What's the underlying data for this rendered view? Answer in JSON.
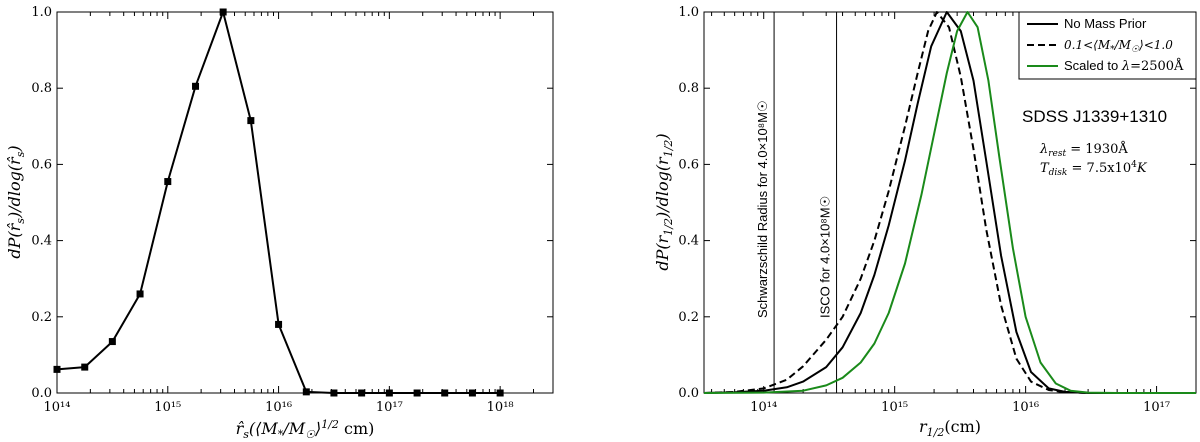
{
  "chart_data": [
    {
      "type": "line",
      "xscale": "log",
      "xlim": [
        100000000000000.0,
        3e+18
      ],
      "ylim": [
        0,
        1.0
      ],
      "xlabel": "r̂s(⟨M*/M☉⟩1/2 cm)",
      "ylabel": "dP(r̂s)/dlog(r̂s)",
      "xtick_labels": [
        "10¹⁴",
        "10¹⁵",
        "10¹⁶",
        "10¹⁷",
        "10¹⁸"
      ],
      "ytick_labels": [
        "0.0",
        "0.2",
        "0.4",
        "0.6",
        "0.8",
        "1.0"
      ],
      "series": [
        {
          "color": "#000000",
          "marker": "square",
          "x": [
            100000000000000.0,
            178000000000000.0,
            316000000000000.0,
            562000000000000.0,
            1000000000000000.0,
            1780000000000000.0,
            3160000000000000.0,
            5620000000000000.0,
            1e+16,
            1.78e+16,
            3.16e+16,
            5.62e+16,
            1e+17,
            1.78e+17,
            3.16e+17,
            5.62e+17,
            1e+18
          ],
          "y": [
            0.062,
            0.068,
            0.135,
            0.26,
            0.555,
            0.805,
            1.0,
            0.715,
            0.18,
            0.003,
            0.0,
            0.0,
            0.0,
            0.0,
            0.0,
            0.0,
            0.0
          ]
        }
      ]
    },
    {
      "type": "line",
      "xscale": "log",
      "xlim": [
        35000000000000.0,
        2e+17
      ],
      "ylim": [
        0,
        1.0
      ],
      "xlabel": "r1/2(cm)",
      "ylabel": "dP(r1/2)/dlog(r1/2)",
      "xtick_labels": [
        "10¹⁴",
        "10¹⁵",
        "10¹⁶",
        "10¹⁷"
      ],
      "ytick_labels": [
        "0.0",
        "0.2",
        "0.4",
        "0.6",
        "0.8",
        "1.0"
      ],
      "legend_position": "top-right",
      "series": [
        {
          "name": "No Mass Prior",
          "color": "#000000",
          "dash": "solid",
          "x": [
            35000000000000.0,
            60000000000000.0,
            100000000000000.0,
            150000000000000.0,
            200000000000000.0,
            300000000000000.0,
            400000000000000.0,
            550000000000000.0,
            700000000000000.0,
            900000000000000.0,
            1200000000000000.0,
            1500000000000000.0,
            1900000000000000.0,
            2500000000000000.0,
            3200000000000000.0,
            4000000000000000.0,
            5000000000000000.0,
            6500000000000000.0,
            8500000000000000.0,
            1.1e+16,
            1.5e+16,
            2e+16,
            3e+16,
            5e+16,
            2e+17
          ],
          "y": [
            0.0,
            0.002,
            0.006,
            0.015,
            0.03,
            0.068,
            0.12,
            0.21,
            0.31,
            0.44,
            0.61,
            0.76,
            0.91,
            1.0,
            0.95,
            0.82,
            0.61,
            0.36,
            0.16,
            0.055,
            0.012,
            0.003,
            0.0,
            0.0,
            0.0
          ]
        },
        {
          "name": "0.1<⟨M*/M☉⟩<1.0",
          "color": "#000000",
          "dash": "dashed",
          "x": [
            35000000000000.0,
            60000000000000.0,
            100000000000000.0,
            150000000000000.0,
            200000000000000.0,
            300000000000000.0,
            400000000000000.0,
            550000000000000.0,
            700000000000000.0,
            900000000000000.0,
            1200000000000000.0,
            1500000000000000.0,
            1800000000000000.0,
            2100000000000000.0,
            2600000000000000.0,
            3200000000000000.0,
            4000000000000000.0,
            5000000000000000.0,
            6500000000000000.0,
            8500000000000000.0,
            1.1e+16,
            1.5e+16,
            2e+16,
            3e+16,
            2e+17
          ],
          "y": [
            0.0,
            0.003,
            0.012,
            0.035,
            0.07,
            0.14,
            0.2,
            0.3,
            0.4,
            0.53,
            0.7,
            0.84,
            0.95,
            1.0,
            0.96,
            0.83,
            0.64,
            0.43,
            0.23,
            0.09,
            0.03,
            0.008,
            0.002,
            0.0,
            0.0
          ]
        },
        {
          "name": "Scaled to λ=2500Å",
          "color": "#1a8a1a",
          "dash": "solid",
          "x": [
            35000000000000.0,
            100000000000000.0,
            200000000000000.0,
            300000000000000.0,
            400000000000000.0,
            550000000000000.0,
            700000000000000.0,
            900000000000000.0,
            1200000000000000.0,
            1600000000000000.0,
            2000000000000000.0,
            2500000000000000.0,
            3000000000000000.0,
            3600000000000000.0,
            4300000000000000.0,
            5200000000000000.0,
            6300000000000000.0,
            8000000000000000.0,
            1e+16,
            1.3e+16,
            1.7e+16,
            2.2e+16,
            3e+16,
            5e+16,
            2e+17
          ],
          "y": [
            0.0,
            0.001,
            0.006,
            0.02,
            0.04,
            0.08,
            0.13,
            0.21,
            0.34,
            0.52,
            0.68,
            0.84,
            0.95,
            1.0,
            0.96,
            0.82,
            0.62,
            0.38,
            0.2,
            0.08,
            0.025,
            0.006,
            0.001,
            0.0,
            0.0
          ]
        }
      ],
      "vlines": [
        {
          "x": 120000000000000.0,
          "label": "Schwarzschild Radius for 4.0×10⁸M☉"
        },
        {
          "x": 360000000000000.0,
          "label": "ISCO for 4.0×10⁸M☉"
        }
      ],
      "annotations": {
        "object": "SDSS J1339+1310",
        "lambda_rest": "λrest = 1930Å",
        "t_disk": "Tdisk = 7.5x10⁴K"
      }
    }
  ]
}
